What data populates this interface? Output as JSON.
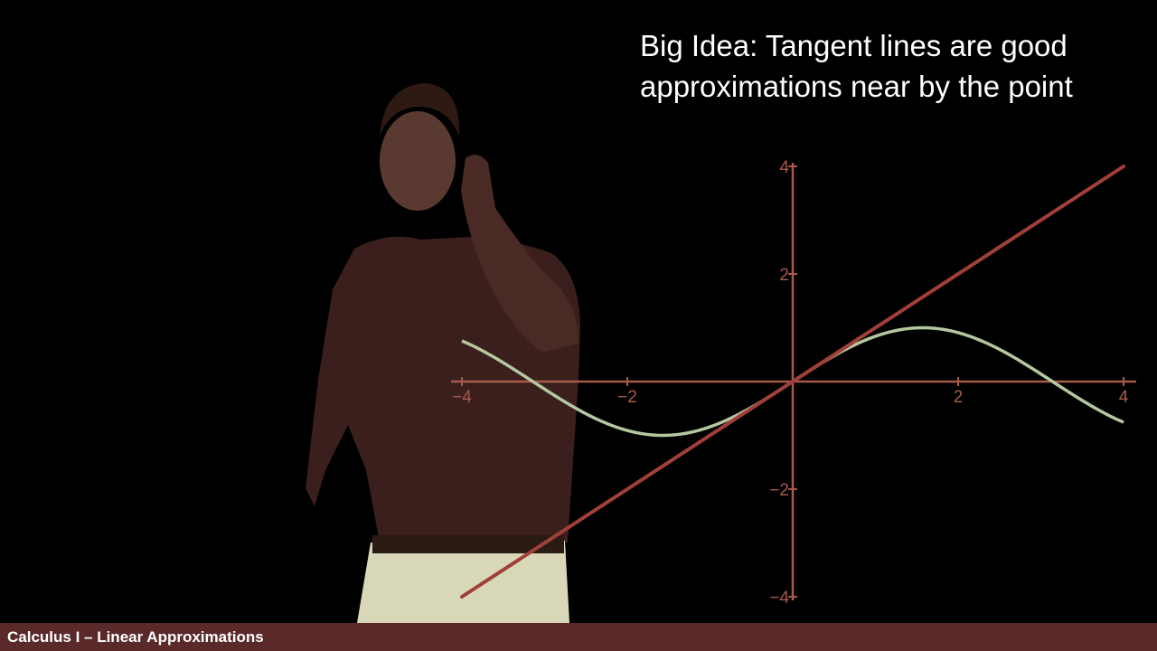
{
  "headline": {
    "line1": "Big Idea: Tangent lines are good",
    "line2": "approximations near by the point"
  },
  "footer": {
    "label": "Calculus I – Linear Approximations"
  },
  "colors": {
    "axis": "#a85a4a",
    "tangent": "#a04038",
    "curve": "#b4c8a0",
    "presenter_shirt": "#3a1f1c",
    "presenter_pants": "#d8d8b8",
    "footer_bg": "#5a2a2a"
  },
  "chart_data": {
    "type": "line",
    "title": "",
    "xlabel": "",
    "ylabel": "",
    "xlim": [
      -4,
      4
    ],
    "ylim": [
      -4,
      4
    ],
    "x_ticks": [
      -4,
      -2,
      2,
      4
    ],
    "y_ticks": [
      4,
      2,
      -2,
      -4
    ],
    "x_tick_labels": [
      "−4",
      "−2",
      "2",
      "4"
    ],
    "y_tick_labels": [
      "4",
      "2",
      "−2",
      "−4"
    ],
    "grid": false,
    "legend": "none",
    "series": [
      {
        "function": "sin(x)",
        "x": [
          -4,
          -3.5,
          -3,
          -2.5,
          -2,
          -1.5,
          -1,
          -0.5,
          0,
          0.5,
          1,
          1.5,
          2,
          2.5,
          3,
          3.5,
          4
        ],
        "y": [
          0.757,
          0.351,
          -0.141,
          -0.598,
          -0.909,
          -0.997,
          -0.841,
          -0.479,
          0,
          0.479,
          0.841,
          0.997,
          0.909,
          0.598,
          0.141,
          -0.351,
          -0.757
        ]
      },
      {
        "function": "y = x",
        "x": [
          -4,
          4
        ],
        "y": [
          -4,
          4
        ]
      }
    ]
  }
}
